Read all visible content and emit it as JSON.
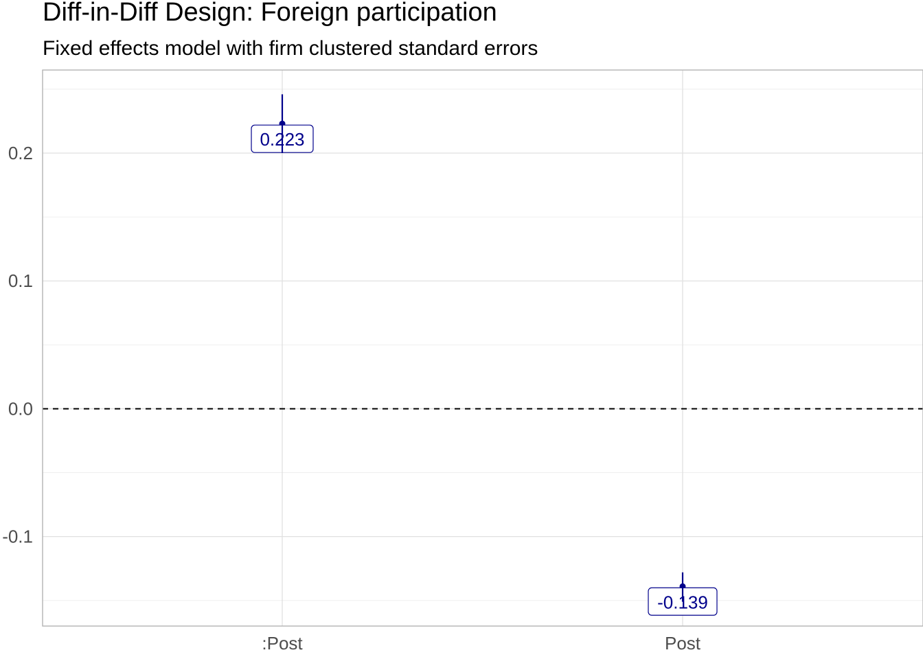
{
  "title": "Diff-in-Diff Design: Foreign participation",
  "subtitle": "Fixed effects model with firm clustered standard errors",
  "chart_data": {
    "type": "scatter",
    "categories": [
      ":Post",
      "Post"
    ],
    "values": [
      0.223,
      -0.139
    ],
    "lower": [
      0.2,
      -0.151
    ],
    "upper": [
      0.246,
      -0.128
    ],
    "data_labels": [
      "0.223",
      "-0.139"
    ],
    "yticks": [
      -0.1,
      0.0,
      0.1,
      0.2
    ],
    "ytick_labels": [
      "-0.1",
      "0.0",
      "0.1",
      "0.2"
    ],
    "ylim": [
      -0.17,
      0.265
    ],
    "reference_line": 0,
    "grid": true,
    "point_color": "#00008b",
    "xlabel": "",
    "ylabel": ""
  }
}
